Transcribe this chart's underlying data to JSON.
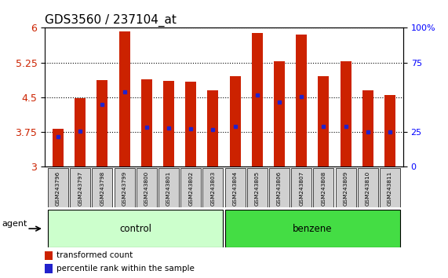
{
  "title": "GDS3560 / 237104_at",
  "samples": [
    "GSM243796",
    "GSM243797",
    "GSM243798",
    "GSM243799",
    "GSM243800",
    "GSM243801",
    "GSM243802",
    "GSM243803",
    "GSM243804",
    "GSM243805",
    "GSM243806",
    "GSM243807",
    "GSM243808",
    "GSM243809",
    "GSM243810",
    "GSM243811"
  ],
  "bar_heights": [
    3.82,
    4.48,
    4.87,
    5.92,
    4.88,
    4.85,
    4.83,
    4.65,
    4.95,
    5.88,
    5.28,
    5.85,
    4.95,
    5.27,
    4.65,
    4.55
  ],
  "percentile_values": [
    3.65,
    3.77,
    4.35,
    4.62,
    3.85,
    3.83,
    3.82,
    3.8,
    3.87,
    4.55,
    4.4,
    4.52,
    3.87,
    3.87,
    3.75,
    3.75
  ],
  "bar_color": "#cc2200",
  "dot_color": "#2222cc",
  "ymin": 3.0,
  "ymax": 6.0,
  "yticks": [
    3.0,
    3.75,
    4.5,
    5.25,
    6.0
  ],
  "ytick_labels": [
    "3",
    "3.75",
    "4.5",
    "5.25",
    "6"
  ],
  "right_ytick_pcts": [
    0,
    25,
    75,
    100
  ],
  "right_ytick_labels": [
    "0",
    "25",
    "75",
    "100%"
  ],
  "groups": [
    {
      "label": "control",
      "start": 0,
      "end": 7,
      "color": "#ccffcc"
    },
    {
      "label": "benzene",
      "start": 8,
      "end": 15,
      "color": "#44dd44"
    }
  ],
  "group_row_label": "agent",
  "legend_items": [
    {
      "label": "transformed count",
      "color": "#cc2200"
    },
    {
      "label": "percentile rank within the sample",
      "color": "#2222cc"
    }
  ],
  "bar_width": 0.5,
  "plot_bg_color": "#ffffff",
  "tick_label_color_left": "#cc2200",
  "tick_label_color_right": "#0000ff",
  "title_fontsize": 11,
  "tick_fontsize": 8
}
